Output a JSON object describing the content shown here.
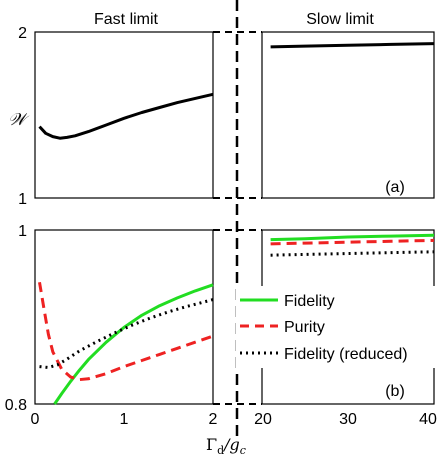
{
  "figure": {
    "header_left": "Fast limit",
    "header_right": "Slow limit",
    "xlabel": "Γd/gc",
    "xlabel_main": "Γ",
    "xlabel_sub1": "d",
    "xlabel_slash": "/g",
    "xlabel_sub2": "c"
  },
  "chart_data": [
    {
      "panel": "a",
      "panel_label": "(a)",
      "type": "line",
      "ylabel": "𝒲",
      "ylim": [
        1,
        2
      ],
      "yticks": [
        "1",
        "2"
      ],
      "left_xlim": [
        0,
        2
      ],
      "right_xlim": [
        20,
        40
      ],
      "grid": false,
      "series": [
        {
          "color": "#000000",
          "style": "solid",
          "left": {
            "x": [
              0.05,
              0.12,
              0.2,
              0.28,
              0.36,
              0.45,
              0.6,
              0.8,
              1.0,
              1.2,
              1.4,
              1.6,
              1.8,
              2.0
            ],
            "y": [
              1.43,
              1.39,
              1.37,
              1.36,
              1.365,
              1.375,
              1.4,
              1.44,
              1.48,
              1.515,
              1.545,
              1.575,
              1.6,
              1.625
            ]
          },
          "right": {
            "x": [
              21,
              25,
              30,
              35,
              40
            ],
            "y": [
              1.91,
              1.915,
              1.92,
              1.925,
              1.93
            ]
          }
        }
      ]
    },
    {
      "panel": "b",
      "panel_label": "(b)",
      "type": "line",
      "ylim": [
        0.8,
        1.0
      ],
      "yticks": [
        "0.8",
        "1"
      ],
      "xticks_left": [
        "0",
        "1",
        "2"
      ],
      "xticks_right": [
        "20",
        "30",
        "40"
      ],
      "left_xlim": [
        0,
        2
      ],
      "right_xlim": [
        20,
        40
      ],
      "grid": false,
      "legend_position": "center-right",
      "series": [
        {
          "name": "Fidelity",
          "color": "#22dd22",
          "style": "solid",
          "left": {
            "x": [
              0.22,
              0.3,
              0.4,
              0.5,
              0.6,
              0.8,
              1.0,
              1.2,
              1.4,
              1.6,
              1.8,
              2.0
            ],
            "y": [
              0.8,
              0.812,
              0.826,
              0.839,
              0.851,
              0.871,
              0.888,
              0.902,
              0.913,
              0.922,
              0.93,
              0.937
            ]
          },
          "right": {
            "x": [
              21,
              25,
              30,
              35,
              40
            ],
            "y": [
              0.989,
              0.99,
              0.992,
              0.993,
              0.994
            ]
          }
        },
        {
          "name": "Purity",
          "color": "#ee2222",
          "style": "dashed",
          "left": {
            "x": [
              0.05,
              0.1,
              0.15,
              0.2,
              0.3,
              0.4,
              0.5,
              0.6,
              0.8,
              1.0,
              1.2,
              1.4,
              1.6,
              1.8,
              2.0
            ],
            "y": [
              0.94,
              0.91,
              0.88,
              0.86,
              0.84,
              0.831,
              0.828,
              0.829,
              0.835,
              0.843,
              0.85,
              0.857,
              0.864,
              0.871,
              0.878
            ]
          },
          "right": {
            "x": [
              21,
              25,
              30,
              35,
              40
            ],
            "y": [
              0.984,
              0.985,
              0.986,
              0.987,
              0.988
            ]
          }
        },
        {
          "name": "Fidelity (reduced)",
          "color": "#000000",
          "style": "dotted",
          "left": {
            "x": [
              0.05,
              0.15,
              0.25,
              0.35,
              0.5,
              0.7,
              0.9,
              1.1,
              1.3,
              1.5,
              1.7,
              2.0
            ],
            "y": [
              0.843,
              0.842,
              0.845,
              0.851,
              0.861,
              0.872,
              0.882,
              0.891,
              0.899,
              0.906,
              0.912,
              0.92
            ]
          },
          "right": {
            "x": [
              21,
              25,
              30,
              35,
              40
            ],
            "y": [
              0.971,
              0.972,
              0.973,
              0.974,
              0.975
            ]
          }
        }
      ]
    }
  ]
}
